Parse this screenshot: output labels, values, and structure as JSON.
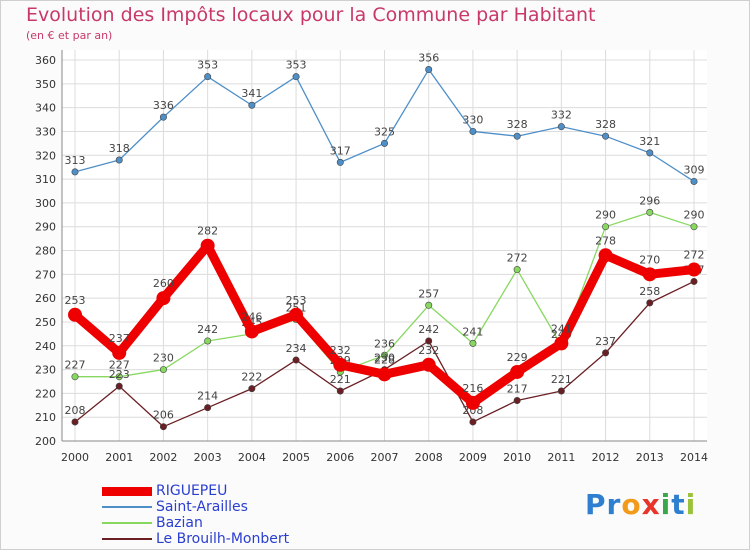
{
  "header": {
    "title": "Evolution des Impôts locaux pour la Commune par Habitant",
    "subtitle": "(en € et par an)"
  },
  "logo": {
    "text": "Proxiti"
  },
  "chart_data": {
    "type": "line",
    "title": "Evolution des Impôts locaux pour la Commune par Habitant",
    "subtitle": "(en € et par an)",
    "x": [
      "2000",
      "2001",
      "2002",
      "2003",
      "2004",
      "2005",
      "2006",
      "2007",
      "2008",
      "2009",
      "2010",
      "2011",
      "2012",
      "2013",
      "2014"
    ],
    "ylim": [
      200,
      360
    ],
    "yticks": [
      200,
      210,
      220,
      230,
      240,
      250,
      260,
      270,
      280,
      290,
      300,
      310,
      320,
      330,
      340,
      350,
      360
    ],
    "grid": true,
    "legend_position": "bottom-left",
    "series": [
      {
        "name": "RIGUEPEU",
        "color": "#ee0000",
        "values": [
          253,
          237,
          260,
          282,
          246,
          253,
          232,
          228,
          232,
          216,
          229,
          241,
          278,
          270,
          272
        ]
      },
      {
        "name": "Saint-Arailles",
        "color": "#4f8fc8",
        "values": [
          313,
          318,
          336,
          353,
          341,
          353,
          317,
          325,
          356,
          330,
          328,
          332,
          328,
          321,
          309
        ]
      },
      {
        "name": "Bazian",
        "color": "#88d860",
        "values": [
          227,
          227,
          230,
          242,
          245,
          251,
          229,
          236,
          257,
          241,
          272,
          240,
          290,
          296,
          290
        ]
      },
      {
        "name": "Le Brouilh-Monbert",
        "color": "#6b1f24",
        "values": [
          208,
          223,
          206,
          214,
          222,
          234,
          221,
          230,
          242,
          208,
          217,
          221,
          237,
          258,
          267
        ]
      }
    ]
  }
}
